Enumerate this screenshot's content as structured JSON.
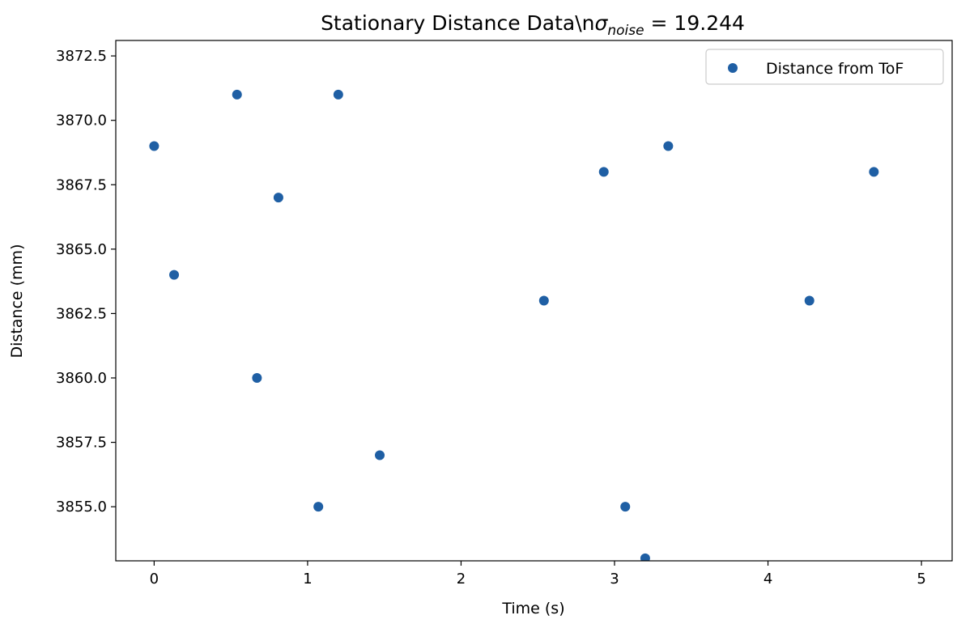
{
  "chart_data": {
    "type": "scatter",
    "title": {
      "prefix": "Stationary Distance Data\\n",
      "symbol": "σ",
      "subscript": "noise",
      "suffix": " = 19.244"
    },
    "xlabel": "Time (s)",
    "ylabel": "Distance (mm)",
    "xlim": [
      -0.25,
      5.2
    ],
    "ylim": [
      3852.9,
      3873.1
    ],
    "xticks": [
      0,
      1,
      2,
      3,
      4,
      5
    ],
    "xtick_labels": [
      "0",
      "1",
      "2",
      "3",
      "4",
      "5"
    ],
    "yticks": [
      3855.0,
      3857.5,
      3860.0,
      3862.5,
      3865.0,
      3867.5,
      3870.0,
      3872.5
    ],
    "ytick_labels": [
      "3855.0",
      "3857.5",
      "3860.0",
      "3862.5",
      "3865.0",
      "3867.5",
      "3870.0",
      "3872.5"
    ],
    "grid": false,
    "legend_position": "top-right",
    "series": [
      {
        "name": "Distance from ToF",
        "color": "#1f5fa4",
        "points": [
          {
            "x": 0.0,
            "y": 3869
          },
          {
            "x": 0.13,
            "y": 3864
          },
          {
            "x": 0.54,
            "y": 3871
          },
          {
            "x": 0.67,
            "y": 3860
          },
          {
            "x": 0.81,
            "y": 3867
          },
          {
            "x": 1.07,
            "y": 3855
          },
          {
            "x": 1.2,
            "y": 3871
          },
          {
            "x": 1.47,
            "y": 3857
          },
          {
            "x": 2.54,
            "y": 3863
          },
          {
            "x": 2.93,
            "y": 3868
          },
          {
            "x": 3.07,
            "y": 3855
          },
          {
            "x": 3.2,
            "y": 3853
          },
          {
            "x": 3.35,
            "y": 3869
          },
          {
            "x": 4.27,
            "y": 3863
          },
          {
            "x": 4.69,
            "y": 3868
          }
        ]
      }
    ]
  }
}
